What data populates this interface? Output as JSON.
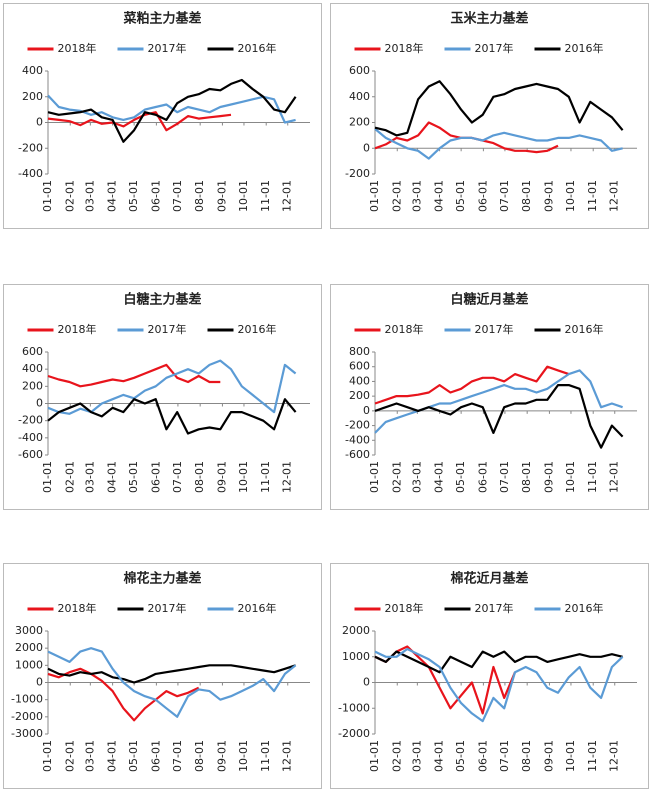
{
  "chart_data": [
    {
      "type": "line",
      "title": "菜粕主力基差",
      "x": [
        0,
        15,
        30,
        45,
        60,
        75,
        90,
        105,
        120,
        135,
        150,
        165,
        180,
        195,
        210,
        225,
        240,
        255,
        270,
        285,
        300,
        315,
        330,
        345
      ],
      "xlim": [
        0,
        365
      ],
      "xticks": [
        {
          "value": 0,
          "label": "01-01"
        },
        {
          "value": 31,
          "label": "02-01"
        },
        {
          "value": 59,
          "label": "03-01"
        },
        {
          "value": 90,
          "label": "04-01"
        },
        {
          "value": 120,
          "label": "05-01"
        },
        {
          "value": 151,
          "label": "06-01"
        },
        {
          "value": 181,
          "label": "07-01"
        },
        {
          "value": 212,
          "label": "08-01"
        },
        {
          "value": 243,
          "label": "09-01"
        },
        {
          "value": 273,
          "label": "10-01"
        },
        {
          "value": 304,
          "label": "11-01"
        },
        {
          "value": 334,
          "label": "12-01"
        }
      ],
      "ylim": [
        -400,
        400
      ],
      "yticks": [
        -400,
        -200,
        0,
        200,
        400
      ],
      "series": [
        {
          "name": "2018年",
          "color": "#e8141c",
          "values": [
            30,
            20,
            10,
            -20,
            20,
            -10,
            0,
            -30,
            20,
            60,
            80,
            -60,
            -10,
            50,
            30,
            40,
            50,
            60,
            null,
            null,
            null,
            null,
            null,
            null
          ]
        },
        {
          "name": "2017年",
          "color": "#5b9bd5",
          "values": [
            210,
            120,
            100,
            90,
            60,
            80,
            40,
            20,
            40,
            100,
            120,
            140,
            80,
            120,
            100,
            80,
            120,
            140,
            160,
            180,
            200,
            180,
            0,
            20
          ]
        },
        {
          "name": "2016年",
          "color": "#000000",
          "values": [
            80,
            60,
            70,
            80,
            100,
            40,
            20,
            -150,
            -60,
            80,
            60,
            20,
            150,
            200,
            220,
            260,
            250,
            300,
            330,
            260,
            200,
            100,
            80,
            200
          ]
        }
      ]
    },
    {
      "type": "line",
      "title": "玉米主力基差",
      "x": [
        0,
        15,
        30,
        45,
        60,
        75,
        90,
        105,
        120,
        135,
        150,
        165,
        180,
        195,
        210,
        225,
        240,
        255,
        270,
        285,
        300,
        315,
        330,
        345
      ],
      "xlim": [
        0,
        365
      ],
      "xticks": [
        {
          "value": 0,
          "label": "01-01"
        },
        {
          "value": 31,
          "label": "02-01"
        },
        {
          "value": 59,
          "label": "03-01"
        },
        {
          "value": 90,
          "label": "04-01"
        },
        {
          "value": 120,
          "label": "05-01"
        },
        {
          "value": 151,
          "label": "06-01"
        },
        {
          "value": 181,
          "label": "07-01"
        },
        {
          "value": 212,
          "label": "08-01"
        },
        {
          "value": 243,
          "label": "09-01"
        },
        {
          "value": 273,
          "label": "10-01"
        },
        {
          "value": 304,
          "label": "11-01"
        },
        {
          "value": 334,
          "label": "12-01"
        }
      ],
      "ylim": [
        -200,
        600
      ],
      "yticks": [
        -200,
        0,
        200,
        400,
        600
      ],
      "series": [
        {
          "name": "2018年",
          "color": "#e8141c",
          "values": [
            0,
            30,
            80,
            60,
            100,
            200,
            160,
            100,
            80,
            80,
            60,
            40,
            0,
            -20,
            -20,
            -30,
            -20,
            20,
            null,
            null,
            null,
            null,
            null,
            null
          ]
        },
        {
          "name": "2017年",
          "color": "#5b9bd5",
          "values": [
            150,
            80,
            40,
            0,
            -20,
            -80,
            0,
            60,
            80,
            80,
            60,
            100,
            120,
            100,
            80,
            60,
            60,
            80,
            80,
            100,
            80,
            60,
            -20,
            0
          ]
        },
        {
          "name": "2016年",
          "color": "#000000",
          "values": [
            160,
            140,
            100,
            120,
            380,
            480,
            520,
            420,
            300,
            200,
            260,
            400,
            420,
            460,
            480,
            500,
            480,
            460,
            400,
            200,
            360,
            300,
            240,
            140
          ]
        }
      ]
    },
    {
      "type": "line",
      "title": "白糖主力基差",
      "x": [
        0,
        15,
        30,
        45,
        60,
        75,
        90,
        105,
        120,
        135,
        150,
        165,
        180,
        195,
        210,
        225,
        240,
        255,
        270,
        285,
        300,
        315,
        330,
        345
      ],
      "xlim": [
        0,
        365
      ],
      "xticks": [
        {
          "value": 0,
          "label": "01-01"
        },
        {
          "value": 31,
          "label": "02-01"
        },
        {
          "value": 59,
          "label": "03-01"
        },
        {
          "value": 90,
          "label": "04-01"
        },
        {
          "value": 120,
          "label": "05-01"
        },
        {
          "value": 151,
          "label": "06-01"
        },
        {
          "value": 181,
          "label": "07-01"
        },
        {
          "value": 212,
          "label": "08-01"
        },
        {
          "value": 243,
          "label": "09-01"
        },
        {
          "value": 273,
          "label": "10-01"
        },
        {
          "value": 304,
          "label": "11-01"
        },
        {
          "value": 334,
          "label": "12-01"
        }
      ],
      "ylim": [
        -600,
        600
      ],
      "yticks": [
        -600,
        -400,
        -200,
        0,
        200,
        400,
        600
      ],
      "series": [
        {
          "name": "2018年",
          "color": "#e8141c",
          "values": [
            320,
            280,
            250,
            200,
            220,
            250,
            280,
            260,
            300,
            350,
            400,
            450,
            300,
            250,
            320,
            250,
            250,
            null,
            null,
            null,
            null,
            null,
            null,
            null
          ]
        },
        {
          "name": "2017年",
          "color": "#5b9bd5",
          "values": [
            -50,
            -100,
            -120,
            -60,
            -100,
            0,
            50,
            100,
            60,
            150,
            200,
            300,
            350,
            400,
            350,
            450,
            500,
            400,
            200,
            100,
            0,
            -100,
            450,
            350
          ]
        },
        {
          "name": "2016年",
          "color": "#000000",
          "values": [
            -200,
            -100,
            -50,
            0,
            -100,
            -150,
            -50,
            -100,
            50,
            0,
            50,
            -300,
            -100,
            -350,
            -300,
            -280,
            -300,
            -100,
            -100,
            -150,
            -200,
            -300,
            50,
            -100
          ]
        }
      ]
    },
    {
      "type": "line",
      "title": "白糖近月基差",
      "x": [
        0,
        15,
        30,
        45,
        60,
        75,
        90,
        105,
        120,
        135,
        150,
        165,
        180,
        195,
        210,
        225,
        240,
        255,
        270,
        285,
        300,
        315,
        330,
        345
      ],
      "xlim": [
        0,
        365
      ],
      "xticks": [
        {
          "value": 0,
          "label": "01-01"
        },
        {
          "value": 31,
          "label": "02-01"
        },
        {
          "value": 59,
          "label": "03-01"
        },
        {
          "value": 90,
          "label": "04-01"
        },
        {
          "value": 120,
          "label": "05-01"
        },
        {
          "value": 151,
          "label": "06-01"
        },
        {
          "value": 181,
          "label": "07-01"
        },
        {
          "value": 212,
          "label": "08-01"
        },
        {
          "value": 243,
          "label": "09-01"
        },
        {
          "value": 273,
          "label": "10-01"
        },
        {
          "value": 304,
          "label": "11-01"
        },
        {
          "value": 334,
          "label": "12-01"
        }
      ],
      "ylim": [
        -600,
        800
      ],
      "yticks": [
        -600,
        -400,
        -200,
        0,
        200,
        400,
        600,
        800
      ],
      "series": [
        {
          "name": "2018年",
          "color": "#e8141c",
          "values": [
            100,
            150,
            200,
            200,
            220,
            250,
            350,
            250,
            300,
            400,
            450,
            450,
            400,
            500,
            450,
            400,
            600,
            550,
            500,
            null,
            null,
            null,
            null,
            null
          ]
        },
        {
          "name": "2017年",
          "color": "#5b9bd5",
          "values": [
            -300,
            -150,
            -100,
            -50,
            0,
            50,
            100,
            100,
            150,
            200,
            250,
            300,
            350,
            300,
            300,
            250,
            300,
            400,
            500,
            550,
            400,
            50,
            100,
            50
          ]
        },
        {
          "name": "2016年",
          "color": "#000000",
          "values": [
            0,
            50,
            100,
            50,
            0,
            50,
            0,
            -50,
            50,
            100,
            50,
            -300,
            50,
            100,
            100,
            150,
            150,
            350,
            350,
            300,
            -200,
            -500,
            -200,
            -350
          ]
        }
      ]
    },
    {
      "type": "line",
      "title": "棉花主力基差",
      "x": [
        0,
        15,
        30,
        45,
        60,
        75,
        90,
        105,
        120,
        135,
        150,
        165,
        180,
        195,
        210,
        225,
        240,
        255,
        270,
        285,
        300,
        315,
        330,
        345
      ],
      "xlim": [
        0,
        365
      ],
      "xticks": [
        {
          "value": 0,
          "label": "01-01"
        },
        {
          "value": 31,
          "label": "02-01"
        },
        {
          "value": 59,
          "label": "03-01"
        },
        {
          "value": 90,
          "label": "04-01"
        },
        {
          "value": 120,
          "label": "05-01"
        },
        {
          "value": 151,
          "label": "06-01"
        },
        {
          "value": 181,
          "label": "07-01"
        },
        {
          "value": 212,
          "label": "08-01"
        },
        {
          "value": 243,
          "label": "09-01"
        },
        {
          "value": 273,
          "label": "10-01"
        },
        {
          "value": 304,
          "label": "11-01"
        },
        {
          "value": 334,
          "label": "12-01"
        }
      ],
      "ylim": [
        -3000,
        3000
      ],
      "yticks": [
        -3000,
        -2000,
        -1000,
        0,
        1000,
        2000,
        3000
      ],
      "series": [
        {
          "name": "2018年",
          "color": "#e8141c",
          "values": [
            500,
            300,
            600,
            800,
            500,
            100,
            -500,
            -1500,
            -2200,
            -1500,
            -1000,
            -500,
            -800,
            -600,
            -300,
            null,
            null,
            null,
            null,
            null,
            null,
            null,
            null,
            null
          ]
        },
        {
          "name": "2017年",
          "color": "#000000",
          "values": [
            800,
            500,
            400,
            600,
            500,
            600,
            300,
            200,
            0,
            200,
            500,
            600,
            700,
            800,
            900,
            1000,
            1000,
            1000,
            900,
            800,
            700,
            600,
            800,
            1000
          ]
        },
        {
          "name": "2016年",
          "color": "#5b9bd5",
          "values": [
            1800,
            1500,
            1200,
            1800,
            2000,
            1800,
            800,
            0,
            -500,
            -800,
            -1000,
            -1500,
            -2000,
            -800,
            -400,
            -500,
            -1000,
            -800,
            -500,
            -200,
            200,
            -500,
            500,
            1000
          ]
        }
      ]
    },
    {
      "type": "line",
      "title": "棉花近月基差",
      "x": [
        0,
        15,
        30,
        45,
        60,
        75,
        90,
        105,
        120,
        135,
        150,
        165,
        180,
        195,
        210,
        225,
        240,
        255,
        270,
        285,
        300,
        315,
        330,
        345
      ],
      "xlim": [
        0,
        365
      ],
      "xticks": [
        {
          "value": 0,
          "label": "01-01"
        },
        {
          "value": 31,
          "label": "02-01"
        },
        {
          "value": 59,
          "label": "03-01"
        },
        {
          "value": 90,
          "label": "04-01"
        },
        {
          "value": 120,
          "label": "05-01"
        },
        {
          "value": 151,
          "label": "06-01"
        },
        {
          "value": 181,
          "label": "07-01"
        },
        {
          "value": 212,
          "label": "08-01"
        },
        {
          "value": 243,
          "label": "09-01"
        },
        {
          "value": 273,
          "label": "10-01"
        },
        {
          "value": 304,
          "label": "11-01"
        },
        {
          "value": 334,
          "label": "12-01"
        }
      ],
      "ylim": [
        -2000,
        2000
      ],
      "yticks": [
        -2000,
        -1000,
        0,
        1000,
        2000
      ],
      "series": [
        {
          "name": "2018年",
          "color": "#e8141c",
          "values": [
            1000,
            800,
            1200,
            1400,
            1000,
            600,
            -200,
            -1000,
            -500,
            0,
            -1200,
            600,
            -600,
            400,
            null,
            null,
            null,
            null,
            null,
            null,
            null,
            null,
            null,
            null
          ]
        },
        {
          "name": "2017年",
          "color": "#000000",
          "values": [
            1000,
            800,
            1200,
            1000,
            800,
            600,
            400,
            1000,
            800,
            600,
            1200,
            1000,
            1200,
            800,
            1000,
            1000,
            800,
            900,
            1000,
            1100,
            1000,
            1000,
            1100,
            1000
          ]
        },
        {
          "name": "2016年",
          "color": "#5b9bd5",
          "values": [
            1200,
            1000,
            1000,
            1300,
            1100,
            900,
            600,
            -200,
            -800,
            -1200,
            -1500,
            -600,
            -1000,
            400,
            600,
            400,
            -200,
            -400,
            200,
            600,
            -200,
            -600,
            600,
            1000
          ]
        }
      ]
    }
  ]
}
